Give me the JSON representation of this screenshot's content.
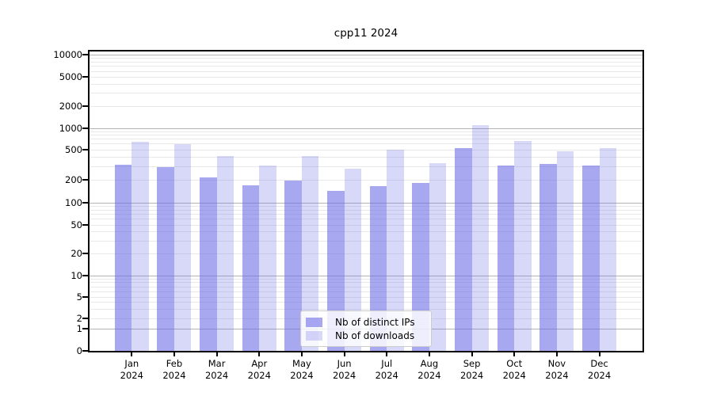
{
  "title": "cpp11 2024",
  "legend": {
    "items": [
      {
        "label": "Nb of distinct IPs",
        "series_key": "ips"
      },
      {
        "label": "Nb of downloads",
        "series_key": "downloads"
      }
    ]
  },
  "colors": {
    "bar_base": "#6666e6",
    "dark_alpha": 0.57,
    "light_alpha": 0.255,
    "grid_major": "#b4b4b4",
    "grid_minor": "#e8e8e8",
    "spine": "#000000",
    "legend_border": "#cccccc",
    "legend_background": "rgba(255,255,255,0.8)"
  },
  "axes": {
    "y_tick_labels": [
      "0",
      "1",
      "2",
      "5",
      "10",
      "20",
      "50",
      "100",
      "200",
      "500",
      "1000",
      "2000",
      "5000",
      "10000"
    ],
    "y_tick_values": [
      0,
      1,
      2,
      5,
      10,
      20,
      50,
      100,
      200,
      500,
      1000,
      2000,
      5000,
      10000
    ],
    "grid_major_values": [
      1,
      10,
      100,
      1000,
      10000
    ]
  },
  "chart_data": {
    "type": "bar",
    "title": "cpp11 2024",
    "categories": [
      "Jan 2024",
      "Feb 2024",
      "Mar 2024",
      "Apr 2024",
      "May 2024",
      "Jun 2024",
      "Jul 2024",
      "Aug 2024",
      "Sep 2024",
      "Oct 2024",
      "Nov 2024",
      "Dec 2024"
    ],
    "series": [
      {
        "name": "Nb of distinct IPs",
        "key": "ips",
        "shade": "dark",
        "values": [
          320,
          293,
          215,
          170,
          195,
          145,
          165,
          183,
          530,
          313,
          325,
          310
        ]
      },
      {
        "name": "Nb of downloads",
        "key": "downloads",
        "shade": "light",
        "values": [
          650,
          600,
          410,
          310,
          415,
          280,
          505,
          335,
          1100,
          665,
          475,
          520
        ]
      }
    ],
    "xlabel": "",
    "ylabel": "",
    "yscale": "symlog (log above 1, linear 0-1)",
    "yticks": [
      0,
      1,
      2,
      5,
      10,
      20,
      50,
      100,
      200,
      500,
      1000,
      2000,
      5000,
      10000
    ],
    "ylim": [
      0,
      11500
    ],
    "grid": true,
    "legend_position": "lower center"
  }
}
